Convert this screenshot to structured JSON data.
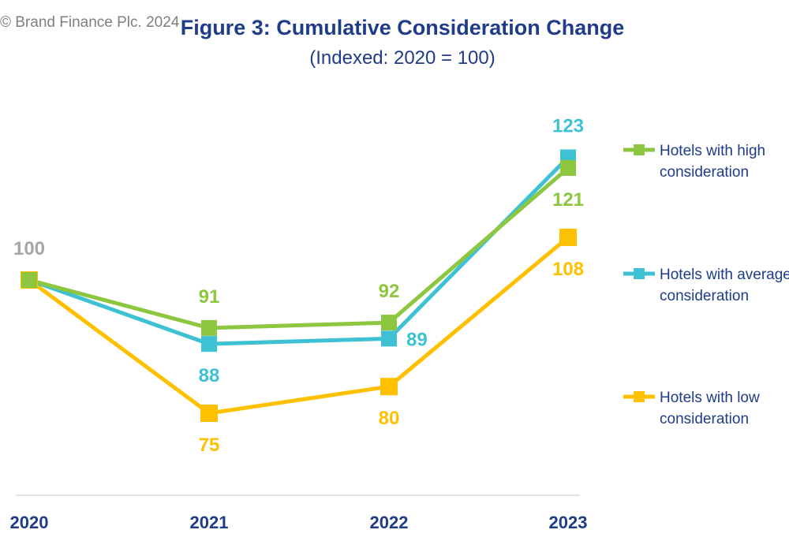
{
  "header": {
    "copyright": "© Brand Finance Plc. 2024",
    "title": "Figure 3: Cumulative Consideration Change",
    "subtitle": "(Indexed: 2020 = 100)"
  },
  "chart_data": {
    "type": "line",
    "title": "Figure 3: Cumulative Consideration Change",
    "subtitle": "(Indexed: 2020 = 100)",
    "x": [
      "2020",
      "2021",
      "2022",
      "2023"
    ],
    "ylim": [
      60,
      130
    ],
    "grid": false,
    "legend_position": "right",
    "series": [
      {
        "name": "Hotels with high consideration",
        "lines": [
          "Hotels with high",
          "consideration"
        ],
        "color": "#8dc63f",
        "values": [
          100,
          91,
          92,
          121
        ],
        "labels": [
          "",
          "91",
          "92",
          "121"
        ],
        "label_pos": [
          "",
          "above",
          "above",
          "below"
        ]
      },
      {
        "name": "Hotels with average consideration",
        "lines": [
          "Hotels with average",
          "consideration"
        ],
        "color": "#3ec1d3",
        "values": [
          100,
          88,
          89,
          123
        ],
        "labels": [
          "",
          "88",
          "89",
          "123"
        ],
        "label_pos": [
          "",
          "below",
          "right",
          "above"
        ]
      },
      {
        "name": "Hotels with low consideration",
        "lines": [
          "Hotels with low",
          "consideration"
        ],
        "color": "#ffc000",
        "values": [
          100,
          75,
          80,
          108
        ],
        "labels": [
          "100",
          "75",
          "80",
          "108"
        ],
        "label_pos": [
          "above",
          "below",
          "below",
          "below"
        ]
      }
    ],
    "label_colors": {
      "start": "#a6a6a6"
    },
    "axis_label_color": "#1f3c88",
    "axis_line_color": "#d9d9d9"
  }
}
